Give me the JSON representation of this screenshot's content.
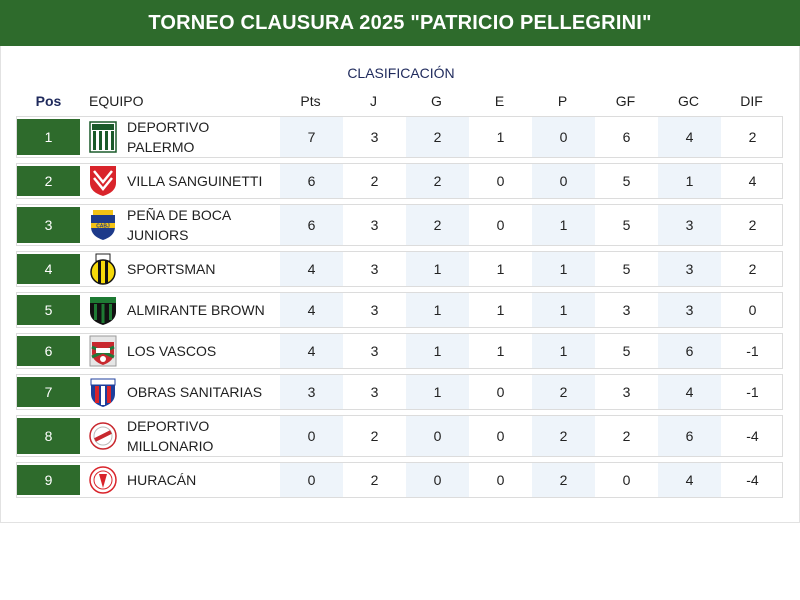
{
  "header": {
    "title": "TORNEO CLAUSURA 2025 \"PATRICIO PELLEGRINI\""
  },
  "table": {
    "subtitle": "CLASIFICACIÓN",
    "columns": {
      "pos": "Pos",
      "team": "EQUIPO",
      "pts": "Pts",
      "j": "J",
      "g": "G",
      "e": "E",
      "p": "P",
      "gf": "GF",
      "gc": "GC",
      "dif": "DIF"
    },
    "rows": [
      {
        "pos": "1",
        "team": "DEPORTIVO PALERMO",
        "badge": "deportivo-palermo-crest-icon",
        "pts": "7",
        "j": "3",
        "g": "2",
        "e": "1",
        "p": "0",
        "gf": "6",
        "gc": "4",
        "dif": "2"
      },
      {
        "pos": "2",
        "team": "VILLA SANGUINETTI",
        "badge": "villa-sanguinetti-crest-icon",
        "pts": "6",
        "j": "2",
        "g": "2",
        "e": "0",
        "p": "0",
        "gf": "5",
        "gc": "1",
        "dif": "4"
      },
      {
        "pos": "3",
        "team": "PEÑA DE BOCA JUNIORS",
        "badge": "boca-juniors-crest-icon",
        "pts": "6",
        "j": "3",
        "g": "2",
        "e": "0",
        "p": "1",
        "gf": "5",
        "gc": "3",
        "dif": "2"
      },
      {
        "pos": "4",
        "team": "SPORTSMAN",
        "badge": "sportsman-crest-icon",
        "pts": "4",
        "j": "3",
        "g": "1",
        "e": "1",
        "p": "1",
        "gf": "5",
        "gc": "3",
        "dif": "2"
      },
      {
        "pos": "5",
        "team": "ALMIRANTE BROWN",
        "badge": "almirante-brown-crest-icon",
        "pts": "4",
        "j": "3",
        "g": "1",
        "e": "1",
        "p": "1",
        "gf": "3",
        "gc": "3",
        "dif": "0"
      },
      {
        "pos": "6",
        "team": "LOS VASCOS",
        "badge": "los-vascos-crest-icon",
        "pts": "4",
        "j": "3",
        "g": "1",
        "e": "1",
        "p": "1",
        "gf": "5",
        "gc": "6",
        "dif": "-1"
      },
      {
        "pos": "7",
        "team": "OBRAS SANITARIAS",
        "badge": "obras-sanitarias-crest-icon",
        "pts": "3",
        "j": "3",
        "g": "1",
        "e": "0",
        "p": "2",
        "gf": "3",
        "gc": "4",
        "dif": "-1"
      },
      {
        "pos": "8",
        "team": "DEPORTIVO MILLONARIO",
        "badge": "deportivo-millonario-crest-icon",
        "pts": "0",
        "j": "2",
        "g": "0",
        "e": "0",
        "p": "2",
        "gf": "2",
        "gc": "6",
        "dif": "-4"
      },
      {
        "pos": "9",
        "team": "HURACÁN",
        "badge": "huracan-crest-icon",
        "pts": "0",
        "j": "2",
        "g": "0",
        "e": "0",
        "p": "2",
        "gf": "0",
        "gc": "4",
        "dif": "-4"
      }
    ]
  },
  "colors": {
    "header_bg": "#2e6b2c",
    "pos_bg": "#2e6b2c",
    "shade_bg": "#eef4fa",
    "subtitle_text": "#1f2a5c"
  }
}
